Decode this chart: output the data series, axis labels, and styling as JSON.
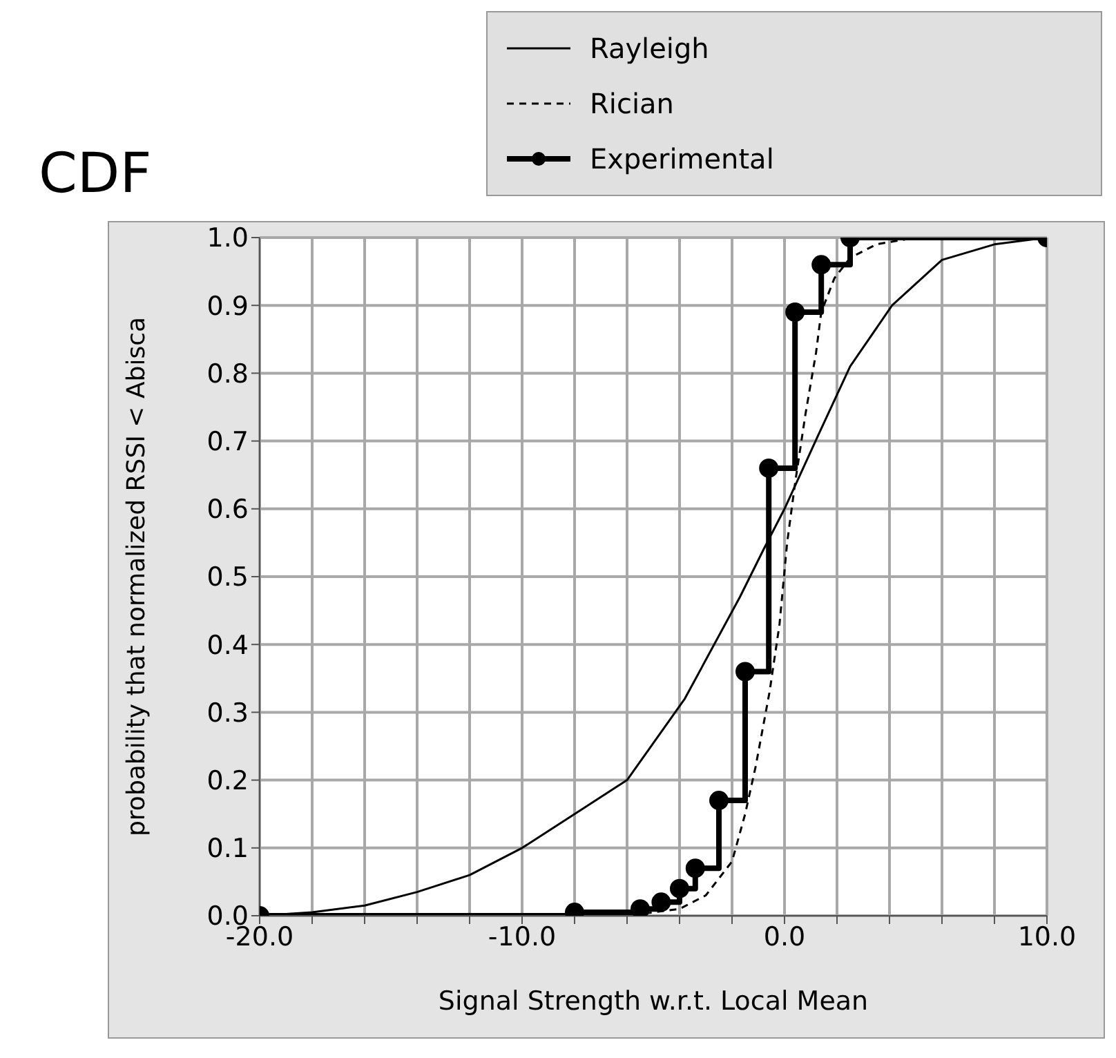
{
  "chart_data": {
    "type": "line",
    "title": "CDF",
    "xlabel": "Signal Strength w.r.t. Local Mean",
    "ylabel": "probability that normalized RSSI < Abisca",
    "xlim": [
      -20,
      10
    ],
    "xticks": [
      {
        "value": -20,
        "label": "-20.0"
      },
      {
        "value": -18,
        "label": null
      },
      {
        "value": -16,
        "label": null
      },
      {
        "value": -14,
        "label": null
      },
      {
        "value": -12,
        "label": null
      },
      {
        "value": -10,
        "label": "-10.0"
      },
      {
        "value": -8,
        "label": null
      },
      {
        "value": -6,
        "label": null
      },
      {
        "value": -4,
        "label": null
      },
      {
        "value": -2,
        "label": null
      },
      {
        "value": 0,
        "label": "0.0"
      },
      {
        "value": 2,
        "label": null
      },
      {
        "value": 4,
        "label": null
      },
      {
        "value": 6,
        "label": null
      },
      {
        "value": 8,
        "label": null
      },
      {
        "value": 10,
        "label": "10.0"
      }
    ],
    "ylim": [
      0,
      1
    ],
    "yticks": [
      {
        "value": 0,
        "label": "0.0"
      },
      {
        "value": 0.1,
        "label": "0.1"
      },
      {
        "value": 0.2,
        "label": "0.2"
      },
      {
        "value": 0.3,
        "label": "0.3"
      },
      {
        "value": 0.4,
        "label": "0.4"
      },
      {
        "value": 0.5,
        "label": "0.5"
      },
      {
        "value": 0.6,
        "label": "0.6"
      },
      {
        "value": 0.7,
        "label": "0.7"
      },
      {
        "value": 0.8,
        "label": "0.8"
      },
      {
        "value": 0.9,
        "label": "0.9"
      },
      {
        "value": 1,
        "label": "1.0"
      }
    ],
    "grid": true,
    "legend": "top right",
    "series": [
      {
        "name": "Rayleigh",
        "type": "line",
        "color": "#000000",
        "line_style": "solid",
        "marker": "none",
        "x": [
          -20,
          -18,
          -16,
          -14,
          -12,
          -10,
          -8,
          -6,
          -3.8,
          -1.7,
          -0.8,
          0,
          1.3,
          2.5,
          4.1,
          6,
          8,
          10
        ],
        "values": [
          0,
          0.005,
          0.015,
          0.035,
          0.06,
          0.1,
          0.15,
          0.2,
          0.32,
          0.47,
          0.54,
          0.6,
          0.71,
          0.81,
          0.9,
          0.967,
          0.99,
          1
        ]
      },
      {
        "name": "Rician",
        "type": "line",
        "color": "#000000",
        "line_style": "dashed",
        "marker": "none",
        "x": [
          -20,
          -6,
          -4,
          -3,
          -2,
          -1.5,
          -1.1,
          -0.57,
          -0.19,
          0.1,
          0.41,
          0.8,
          1.2,
          1.4,
          1.9,
          2.5,
          3.5,
          5,
          10
        ],
        "values": [
          0,
          0,
          0.01,
          0.03,
          0.08,
          0.15,
          0.22,
          0.33,
          0.43,
          0.55,
          0.64,
          0.74,
          0.83,
          0.89,
          0.94,
          0.97,
          0.99,
          1,
          1
        ]
      },
      {
        "name": "Experimental",
        "type": "step",
        "color": "#000000",
        "line_style": "solid",
        "marker": "circle",
        "x": [
          -20,
          -8,
          -5.5,
          -4.7,
          -4,
          -3.4,
          -2.5,
          -1.5,
          -0.6,
          0.4,
          1.4,
          2.5,
          10
        ],
        "values": [
          0,
          0.005,
          0.01,
          0.02,
          0.04,
          0.07,
          0.17,
          0.36,
          0.66,
          0.89,
          0.96,
          1,
          1
        ]
      }
    ]
  }
}
